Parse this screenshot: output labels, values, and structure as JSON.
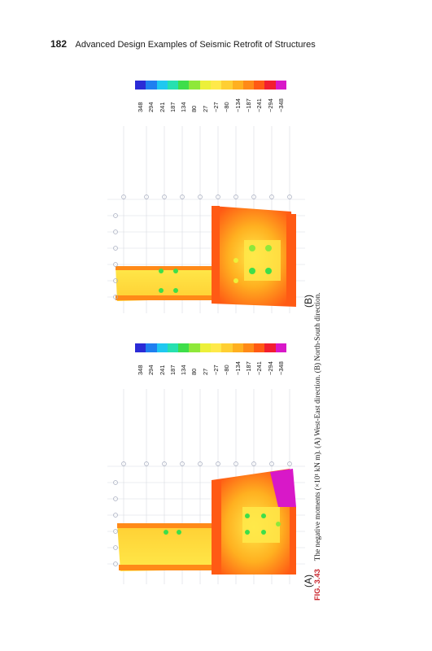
{
  "header": {
    "page_number": "182",
    "running_title": "Advanced Design Examples of Seismic Retrofit of Structures"
  },
  "figure": {
    "label": "FIG. 3.43",
    "caption": "The negative moments (×10¹ kN m). (A) West-East direction. (B) North-South direction."
  },
  "panels": [
    {
      "label": "(A)"
    },
    {
      "label": "(B)"
    }
  ],
  "legend": {
    "values": [
      "348",
      "294",
      "241",
      "187",
      "134",
      "80",
      "27",
      "−27",
      "−80",
      "−134",
      "−187",
      "−241",
      "−294",
      "−348"
    ],
    "colors": [
      "#2b2bd6",
      "#1f7ff0",
      "#1fc8f0",
      "#26e0b0",
      "#3ede4a",
      "#8ee83a",
      "#ecf03a",
      "#ffe94a",
      "#ffcf33",
      "#ffb020",
      "#ff8a18",
      "#ff5a14",
      "#f21e30",
      "#d818c8"
    ]
  }
}
